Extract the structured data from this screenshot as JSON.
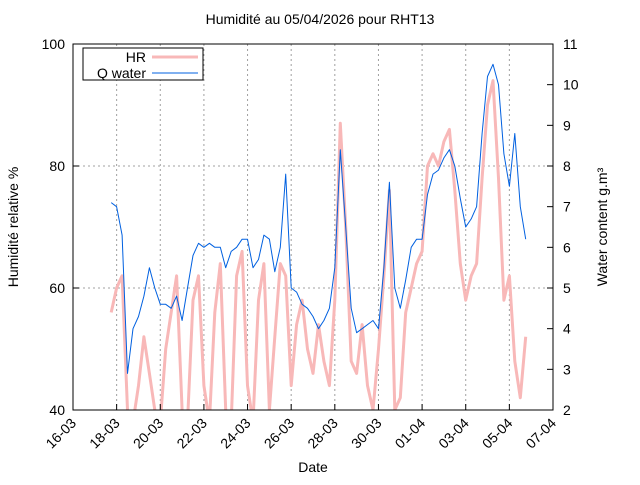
{
  "chart_data": {
    "type": "line",
    "title": "Humidité au 05/04/2026 pour RHT13",
    "xlabel": "Date",
    "ylabel": "Humidité relative %",
    "y2label": "Water content g.m³",
    "x": [
      1.75,
      2,
      2.25,
      2.5,
      2.75,
      3,
      3.25,
      3.5,
      3.75,
      4,
      4.25,
      4.5,
      4.75,
      5,
      5.25,
      5.5,
      5.75,
      6,
      6.25,
      6.5,
      6.75,
      7,
      7.25,
      7.5,
      7.75,
      8,
      8.25,
      8.5,
      8.75,
      9,
      9.25,
      9.5,
      9.75,
      10,
      10.25,
      10.5,
      10.75,
      11,
      11.25,
      11.5,
      11.75,
      12,
      12.25,
      12.5,
      12.75,
      13,
      13.25,
      13.5,
      13.75,
      14,
      14.25,
      14.5,
      14.75,
      15,
      15.25,
      15.5,
      15.75,
      16,
      16.25,
      16.5,
      16.75,
      17,
      17.25,
      17.5,
      17.75,
      18,
      18.25,
      18.5,
      18.75,
      19,
      19.25,
      19.5,
      19.75,
      20,
      20.25,
      20.5,
      20.75
    ],
    "series": [
      {
        "name": "HR",
        "color": "#f8b8b8",
        "values": [
          56,
          60,
          62,
          40,
          38,
          44,
          52,
          46,
          40,
          38,
          50,
          56,
          62,
          40,
          38,
          58,
          62,
          44,
          38,
          56,
          64,
          40,
          38,
          62,
          66,
          44,
          38,
          58,
          64,
          40,
          52,
          64,
          62,
          44,
          54,
          58,
          50,
          46,
          54,
          48,
          44,
          58,
          87,
          70,
          48,
          46,
          54,
          44,
          40,
          50,
          62,
          76,
          40,
          42,
          56,
          60,
          64,
          66,
          80,
          82,
          80,
          84,
          86,
          76,
          64,
          58,
          62,
          64,
          78,
          90,
          94,
          78,
          58,
          62,
          48,
          42,
          52
        ]
      },
      {
        "name": "Q water",
        "color": "#0060e0",
        "axis": "y2",
        "values": [
          7.1,
          7.0,
          6.3,
          2.9,
          4.0,
          4.3,
          4.8,
          5.5,
          5.0,
          4.6,
          4.6,
          4.5,
          4.8,
          4.2,
          5.0,
          5.8,
          6.1,
          6.0,
          6.1,
          6.0,
          6.0,
          5.5,
          5.9,
          6.0,
          6.2,
          6.2,
          5.5,
          5.7,
          6.3,
          6.2,
          5.4,
          6.0,
          7.8,
          5.0,
          4.9,
          4.6,
          4.5,
          4.3,
          4.0,
          4.2,
          4.5,
          5.5,
          8.4,
          6.5,
          4.5,
          3.9,
          4.0,
          4.1,
          4.2,
          4.0,
          5.5,
          7.6,
          5.0,
          4.5,
          5.2,
          6.0,
          6.2,
          6.2,
          7.3,
          7.8,
          7.9,
          8.2,
          8.4,
          8.0,
          7.2,
          6.5,
          6.7,
          7.0,
          8.8,
          10.2,
          10.5,
          10.0,
          8.3,
          7.5,
          8.8,
          7.0,
          6.2
        ]
      }
    ],
    "xlim": [
      0,
      22
    ],
    "xticks": [
      {
        "value": 0,
        "label": "16-03"
      },
      {
        "value": 2,
        "label": "18-03"
      },
      {
        "value": 4,
        "label": "20-03"
      },
      {
        "value": 6,
        "label": "22-03"
      },
      {
        "value": 8,
        "label": "24-03"
      },
      {
        "value": 10,
        "label": "26-03"
      },
      {
        "value": 12,
        "label": "28-03"
      },
      {
        "value": 14,
        "label": "30-03"
      },
      {
        "value": 16,
        "label": "01-04"
      },
      {
        "value": 18,
        "label": "03-04"
      },
      {
        "value": 20,
        "label": "05-04"
      },
      {
        "value": 22,
        "label": "07-04"
      }
    ],
    "ylim": [
      40,
      100
    ],
    "yticks": [
      40,
      60,
      80,
      100
    ],
    "y2lim": [
      2,
      11
    ],
    "y2ticks": [
      2,
      3,
      4,
      5,
      6,
      7,
      8,
      9,
      10,
      11
    ],
    "grid": true,
    "legend": "upper left"
  }
}
